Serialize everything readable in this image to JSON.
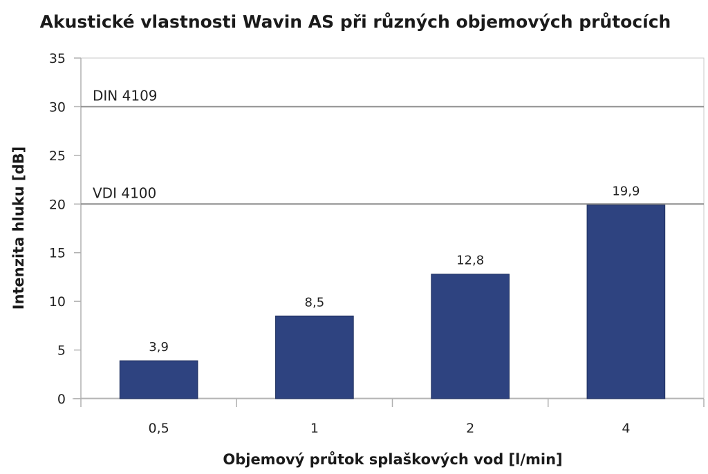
{
  "chart_data": {
    "type": "bar",
    "title": "Akustické vlastnosti Wavin AS při různých objemových průtocích",
    "xlabel": "Objemový průtok splaškových vod [l/min]",
    "ylabel": "Intenzita hluku [dB]",
    "categories": [
      "0,5",
      "1",
      "2",
      "4"
    ],
    "values": [
      3.9,
      8.5,
      12.8,
      19.9
    ],
    "data_labels": [
      "3,9",
      "8,5",
      "12,8",
      "19,9"
    ],
    "ylim": [
      0,
      35
    ],
    "yticks": [
      0,
      5,
      10,
      15,
      20,
      25,
      30,
      35
    ],
    "reference_lines": [
      {
        "label": "DIN 4109",
        "value": 30
      },
      {
        "label": "VDI 4100",
        "value": 20
      }
    ],
    "grid": false,
    "bar_color": "#2e4380",
    "bar_edge_color": "#1f2f5e"
  }
}
